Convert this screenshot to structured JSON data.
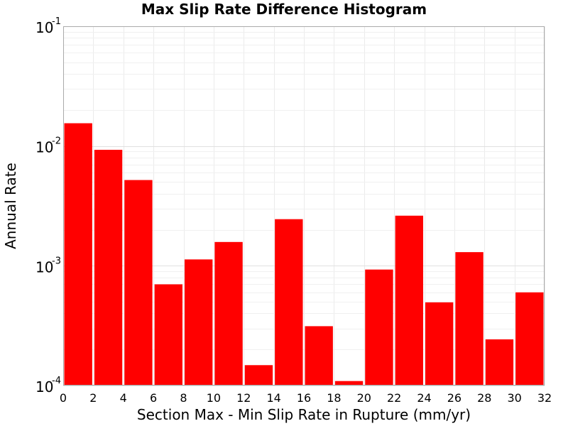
{
  "chart_data": {
    "type": "bar",
    "title": "Max Slip Rate Difference Histogram",
    "xlabel": "Section Max - Min Slip Rate in Rupture (mm/yr)",
    "ylabel": "Annual Rate",
    "y_scale": "log",
    "ylim": [
      0.0001,
      0.1
    ],
    "xlim": [
      0,
      32
    ],
    "bin_width": 2,
    "x_ticks": [
      "0",
      "2",
      "4",
      "6",
      "8",
      "10",
      "12",
      "14",
      "16",
      "18",
      "20",
      "22",
      "24",
      "26",
      "28",
      "30",
      "32"
    ],
    "y_ticks": [
      {
        "base": "10",
        "exp": "-4",
        "value": 0.0001
      },
      {
        "base": "10",
        "exp": "-3",
        "value": 0.001
      },
      {
        "base": "10",
        "exp": "-2",
        "value": 0.01
      },
      {
        "base": "10",
        "exp": "-1",
        "value": 0.1
      }
    ],
    "bins": [
      0,
      2,
      4,
      6,
      8,
      10,
      12,
      14,
      16,
      18,
      20,
      22,
      24,
      26,
      28,
      30
    ],
    "values": [
      0.0155,
      0.0093,
      0.0052,
      0.0007,
      0.00113,
      0.00158,
      0.000148,
      0.00245,
      0.000313,
      0.000109,
      0.00093,
      0.00262,
      0.000495,
      0.0013,
      0.000243,
      0.0006
    ],
    "bar_color": "#ff0000",
    "grid": true,
    "legend": "none"
  }
}
